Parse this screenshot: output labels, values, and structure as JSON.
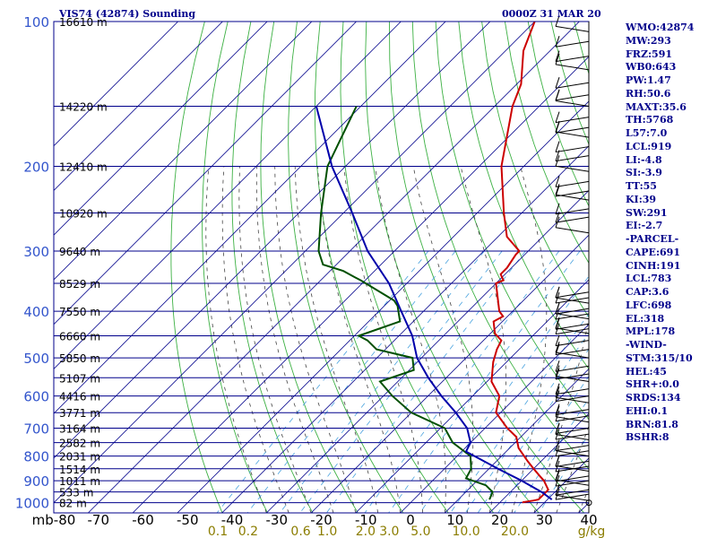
{
  "header": {
    "title": "VIS74 (42874) Sounding",
    "date": "0000Z 31 MAR 20"
  },
  "indices": [
    "WMO:42874",
    "MW:293",
    "FRZ:591",
    "WB0:643",
    "PW:1.47",
    "RH:50.6",
    "MAXT:35.6",
    "TH:5768",
    "L57:7.0",
    "LCL:919",
    "LI:-4.8",
    "SI:-3.9",
    "TT:55",
    "KI:39",
    "SW:291",
    "EI:-2.7",
    "-PARCEL-",
    "CAPE:691",
    "CINH:191",
    "LCL:783",
    "CAP:3.6",
    "LFC:698",
    "EL:318",
    "MPL:178",
    "-WIND-",
    "STM:315/10",
    "HEL:45",
    "SHR+:0.0",
    "SRDS:134",
    "EHI:0.1",
    "BRN:81.8",
    "BSHR:8"
  ],
  "colors": {
    "frame": "#00008b",
    "isobar": "#00008b",
    "isotherm": "#00008b",
    "dry_adiabat": "#3cb043",
    "moist_adiabat": "#444444",
    "mixing_ratio": "#4aa3df",
    "temperature": "#cc0000",
    "dewpoint": "#005000",
    "parcel": "#0000aa",
    "pressure_labels": "#3355cc",
    "temp_labels": "#000000",
    "mixratio_labels": "#8b7d00",
    "height_labels": "#000000"
  },
  "chart_data": {
    "type": "line",
    "title": "VIS74 (42874) Sounding",
    "xlabel": "",
    "ylabel": "mb",
    "log_p": true,
    "skew": true,
    "xlim": [
      -80,
      40
    ],
    "ylim": [
      1050,
      100
    ],
    "pressure_ticks": [
      100,
      200,
      300,
      400,
      500,
      600,
      700,
      800,
      900,
      1000
    ],
    "pressure_tick_labels": [
      "100",
      "200",
      "300",
      "400",
      "500",
      "600",
      "700",
      "800",
      "900",
      "1000"
    ],
    "minor_isobars": [
      150,
      250,
      350,
      450,
      550,
      650,
      750,
      850,
      950
    ],
    "temp_ticks": [
      -80,
      -70,
      -60,
      -50,
      -40,
      -30,
      -20,
      -10,
      0,
      10,
      20,
      30,
      40
    ],
    "temp_tick_labels": [
      "mb-80",
      "-70",
      "-60",
      "-50",
      "-40",
      "-30",
      "-20",
      "-10",
      "0",
      "10",
      "20",
      "30",
      "40"
    ],
    "mixing_ratio_labels": [
      "0.1",
      "0.2",
      "0.6",
      "1.0",
      "2.0",
      "3.0",
      "5.0",
      "10.0",
      "20.0",
      "g/kg"
    ],
    "heights": [
      {
        "p": 100,
        "label": "16610 m"
      },
      {
        "p": 150,
        "label": "14220 m"
      },
      {
        "p": 200,
        "label": "12410 m"
      },
      {
        "p": 250,
        "label": "10920 m"
      },
      {
        "p": 300,
        "label": "9640 m"
      },
      {
        "p": 350,
        "label": "8529 m"
      },
      {
        "p": 400,
        "label": "7550 m"
      },
      {
        "p": 450,
        "label": "6660 m"
      },
      {
        "p": 500,
        "label": "5850 m"
      },
      {
        "p": 550,
        "label": "5107 m"
      },
      {
        "p": 600,
        "label": "4416 m"
      },
      {
        "p": 650,
        "label": "3771 m"
      },
      {
        "p": 700,
        "label": "3164 m"
      },
      {
        "p": 750,
        "label": "2582 m"
      },
      {
        "p": 800,
        "label": "2031 m"
      },
      {
        "p": 850,
        "label": "1514 m"
      },
      {
        "p": 900,
        "label": "1011 m"
      },
      {
        "p": 950,
        "label": "533 m"
      },
      {
        "p": 1000,
        "label": "82 m"
      }
    ],
    "series": [
      {
        "key": "temperature",
        "points": [
          [
            100,
            -80
          ],
          [
            115,
            -76
          ],
          [
            135,
            -69
          ],
          [
            150,
            -66
          ],
          [
            200,
            -55
          ],
          [
            250,
            -44
          ],
          [
            280,
            -38
          ],
          [
            300,
            -32
          ],
          [
            305,
            -32
          ],
          [
            325,
            -31
          ],
          [
            335,
            -31
          ],
          [
            345,
            -29
          ],
          [
            350,
            -30
          ],
          [
            400,
            -23
          ],
          [
            410,
            -21
          ],
          [
            420,
            -22
          ],
          [
            445,
            -19
          ],
          [
            460,
            -16
          ],
          [
            480,
            -15
          ],
          [
            510,
            -13
          ],
          [
            560,
            -9
          ],
          [
            600,
            -4
          ],
          [
            650,
            -1
          ],
          [
            700,
            5
          ],
          [
            730,
            9
          ],
          [
            770,
            12
          ],
          [
            820,
            17
          ],
          [
            850,
            20
          ],
          [
            880,
            23
          ],
          [
            900,
            25
          ],
          [
            940,
            28
          ],
          [
            955,
            28
          ],
          [
            985,
            28
          ],
          [
            990,
            27
          ],
          [
            998,
            25
          ]
        ]
      },
      {
        "key": "dewpoint",
        "points": [
          [
            150,
            -101
          ],
          [
            200,
            -94
          ],
          [
            250,
            -85
          ],
          [
            300,
            -77
          ],
          [
            320,
            -73
          ],
          [
            330,
            -67
          ],
          [
            340,
            -63
          ],
          [
            345,
            -61
          ],
          [
            380,
            -49
          ],
          [
            390,
            -47
          ],
          [
            420,
            -43
          ],
          [
            450,
            -49
          ],
          [
            460,
            -46
          ],
          [
            480,
            -42
          ],
          [
            500,
            -32
          ],
          [
            530,
            -29
          ],
          [
            560,
            -34
          ],
          [
            600,
            -28
          ],
          [
            650,
            -20
          ],
          [
            700,
            -9
          ],
          [
            750,
            -4
          ],
          [
            800,
            3
          ],
          [
            850,
            6
          ],
          [
            890,
            7
          ],
          [
            920,
            13
          ],
          [
            950,
            16
          ],
          [
            985,
            17
          ]
        ]
      },
      {
        "key": "parcel",
        "points": [
          [
            150,
            -110
          ],
          [
            200,
            -93
          ],
          [
            250,
            -78
          ],
          [
            300,
            -66
          ],
          [
            350,
            -54
          ],
          [
            400,
            -45
          ],
          [
            450,
            -37
          ],
          [
            500,
            -31
          ],
          [
            550,
            -24
          ],
          [
            600,
            -17
          ],
          [
            650,
            -10
          ],
          [
            700,
            -4
          ],
          [
            750,
            0
          ],
          [
            783,
            1
          ],
          [
            850,
            12
          ],
          [
            900,
            20
          ],
          [
            950,
            27
          ],
          [
            985,
            31
          ]
        ]
      }
    ]
  }
}
